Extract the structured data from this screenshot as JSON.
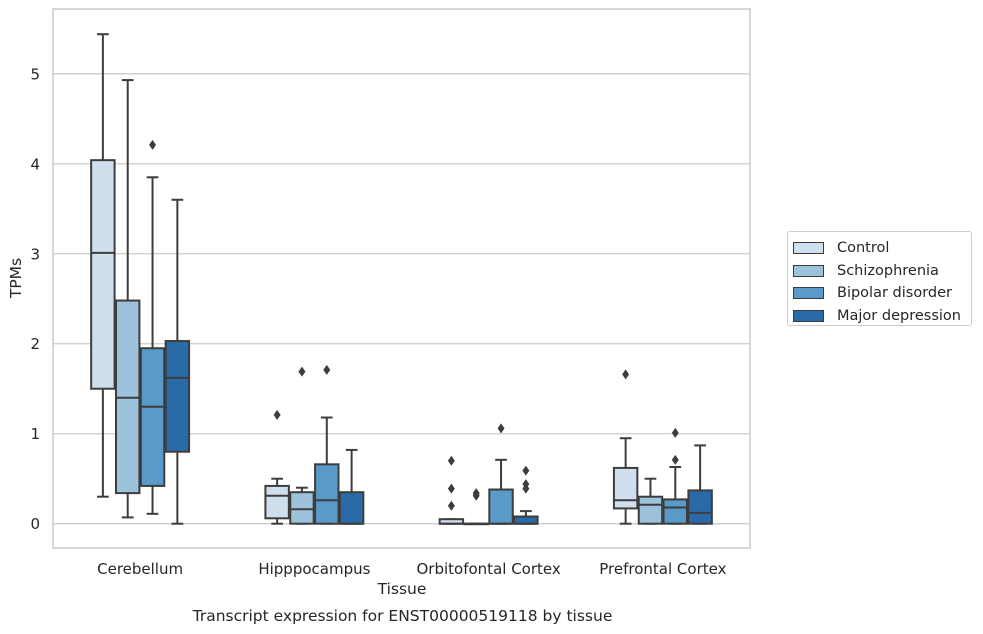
{
  "caption": "Transcript expression for ENST00000519118 by tissue",
  "chart_data": {
    "type": "box",
    "xlabel": "Tissue",
    "ylabel": "TPMs",
    "ylim": [
      -0.27,
      5.72
    ],
    "yticks": [
      0,
      1,
      2,
      3,
      4,
      5
    ],
    "grid": "horizontal",
    "legend_position": "right",
    "categories": [
      "Cerebellum",
      "Hipppocampus",
      "Orbitofontal Cortex",
      "Prefrontal Cortex"
    ],
    "series": [
      {
        "name": "Control",
        "color": "#d0dfee",
        "boxes": [
          {
            "min": 0.3,
            "q1": 1.5,
            "median": 3.01,
            "q3": 4.04,
            "max": 5.44,
            "outliers": []
          },
          {
            "min": 0.0,
            "q1": 0.06,
            "median": 0.31,
            "q3": 0.42,
            "max": 0.5,
            "outliers": [
              1.21
            ]
          },
          {
            "min": 0.0,
            "q1": 0.0,
            "median": 0.0,
            "q3": 0.05,
            "max": 0.05,
            "outliers": [
              0.2,
              0.39,
              0.7
            ]
          },
          {
            "min": 0.0,
            "q1": 0.17,
            "median": 0.26,
            "q3": 0.62,
            "max": 0.95,
            "outliers": [
              1.66
            ]
          }
        ]
      },
      {
        "name": "Schizophrenia",
        "color": "#9cc2dc",
        "boxes": [
          {
            "min": 0.07,
            "q1": 0.34,
            "median": 1.4,
            "q3": 2.48,
            "max": 4.93,
            "outliers": []
          },
          {
            "min": 0.0,
            "q1": 0.0,
            "median": 0.16,
            "q3": 0.35,
            "max": 0.4,
            "outliers": [
              1.69
            ]
          },
          {
            "min": 0.0,
            "q1": 0.0,
            "median": 0.0,
            "q3": 0.0,
            "max": 0.0,
            "outliers": [
              0.31,
              0.34
            ]
          },
          {
            "min": 0.0,
            "q1": 0.0,
            "median": 0.21,
            "q3": 0.3,
            "max": 0.5,
            "outliers": []
          }
        ]
      },
      {
        "name": "Bipolar disorder",
        "color": "#5a9ac8",
        "boxes": [
          {
            "min": 0.11,
            "q1": 0.42,
            "median": 1.3,
            "q3": 1.95,
            "max": 3.85,
            "outliers": [
              4.21
            ]
          },
          {
            "min": 0.0,
            "q1": 0.0,
            "median": 0.26,
            "q3": 0.66,
            "max": 1.18,
            "outliers": [
              1.71
            ]
          },
          {
            "min": 0.0,
            "q1": 0.0,
            "median": 0.0,
            "q3": 0.38,
            "max": 0.71,
            "outliers": [
              1.06
            ]
          },
          {
            "min": 0.0,
            "q1": 0.0,
            "median": 0.18,
            "q3": 0.27,
            "max": 0.63,
            "outliers": [
              0.71,
              1.01
            ]
          }
        ]
      },
      {
        "name": "Major depression",
        "color": "#2a6aa8",
        "boxes": [
          {
            "min": 0.0,
            "q1": 0.8,
            "median": 1.62,
            "q3": 2.03,
            "max": 3.6,
            "outliers": []
          },
          {
            "min": 0.0,
            "q1": 0.0,
            "median": 0.0,
            "q3": 0.35,
            "max": 0.82,
            "outliers": []
          },
          {
            "min": 0.0,
            "q1": 0.0,
            "median": 0.0,
            "q3": 0.08,
            "max": 0.14,
            "outliers": [
              0.39,
              0.44,
              0.59
            ]
          },
          {
            "min": 0.0,
            "q1": 0.0,
            "median": 0.12,
            "q3": 0.37,
            "max": 0.87,
            "outliers": []
          }
        ]
      }
    ]
  }
}
